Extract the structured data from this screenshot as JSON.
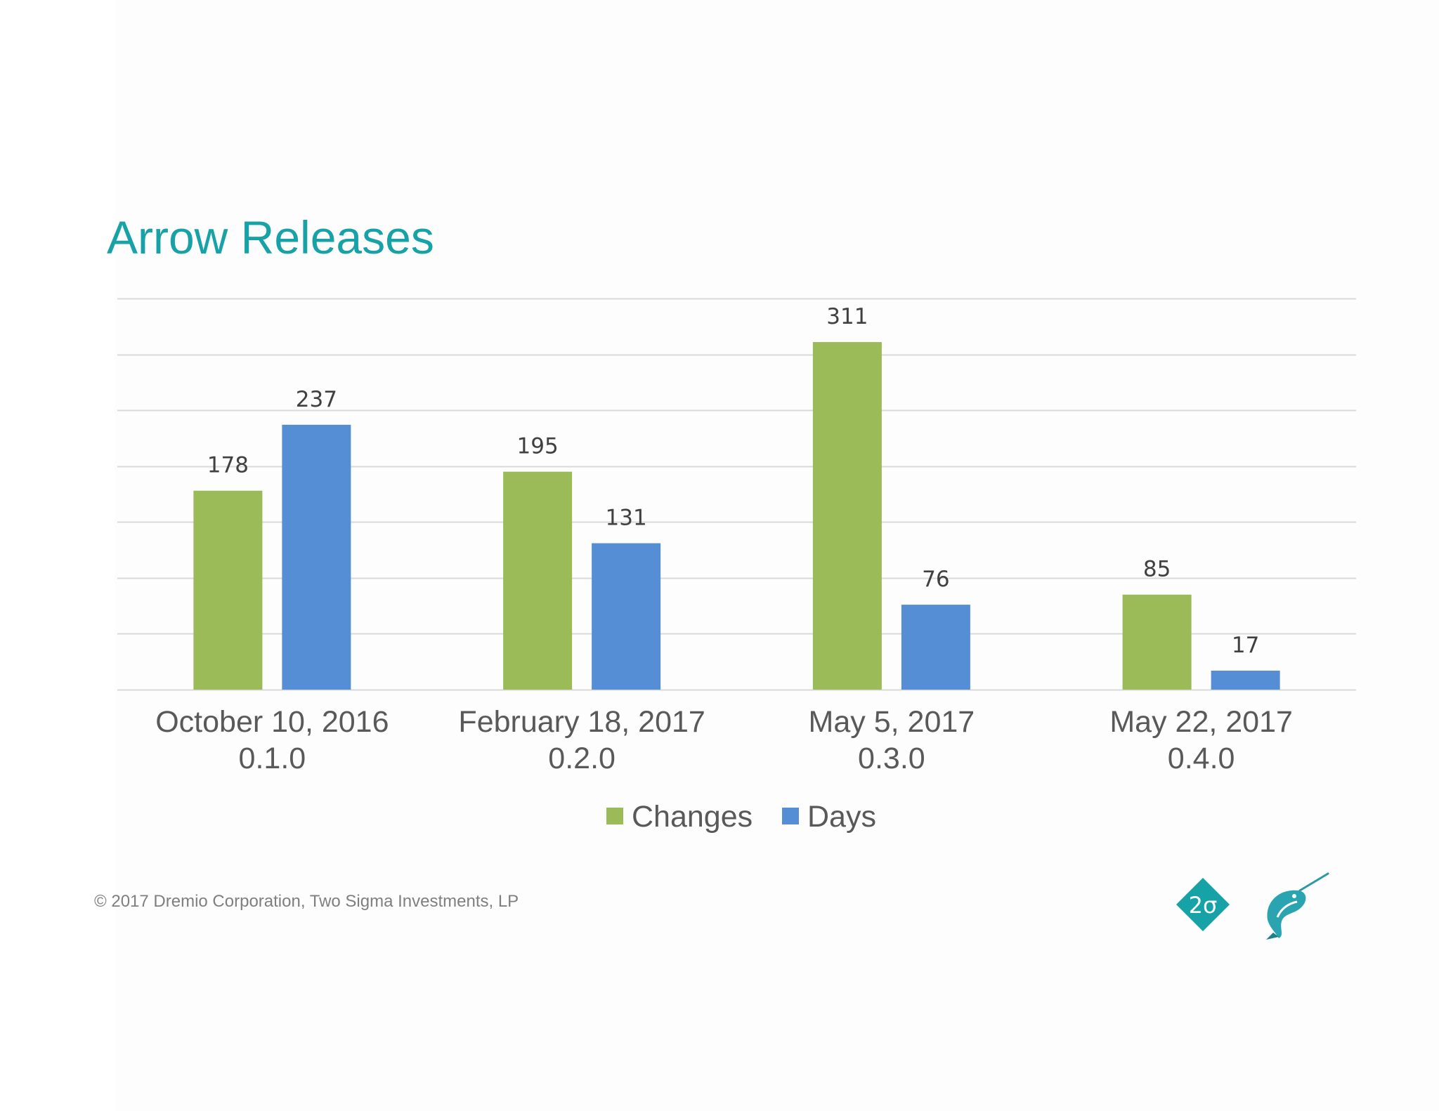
{
  "slide": {
    "title": "Arrow Releases",
    "footer": "© 2017 Dremio Corporation, Two Sigma Investments, LP",
    "two_sigma_logo_text": "2σ"
  },
  "colors": {
    "title": "#17a2a8",
    "changes": "#9bbb59",
    "days": "#558ed5",
    "grid": "#d9d9d9",
    "logo_teal": "#17a2a8"
  },
  "chart_data": {
    "type": "bar",
    "title": "",
    "xlabel": "",
    "ylabel": "",
    "ylim": [
      0,
      350
    ],
    "grid": true,
    "legend_position": "bottom",
    "categories": [
      [
        "October 10, 2016",
        "0.1.0"
      ],
      [
        "February 18, 2017",
        "0.2.0"
      ],
      [
        "May 5, 2017",
        "0.3.0"
      ],
      [
        "May 22, 2017",
        "0.4.0"
      ]
    ],
    "series": [
      {
        "name": "Changes",
        "color": "#9bbb59",
        "values": [
          178,
          195,
          311,
          85
        ]
      },
      {
        "name": "Days",
        "color": "#558ed5",
        "values": [
          237,
          131,
          76,
          17
        ]
      }
    ]
  }
}
